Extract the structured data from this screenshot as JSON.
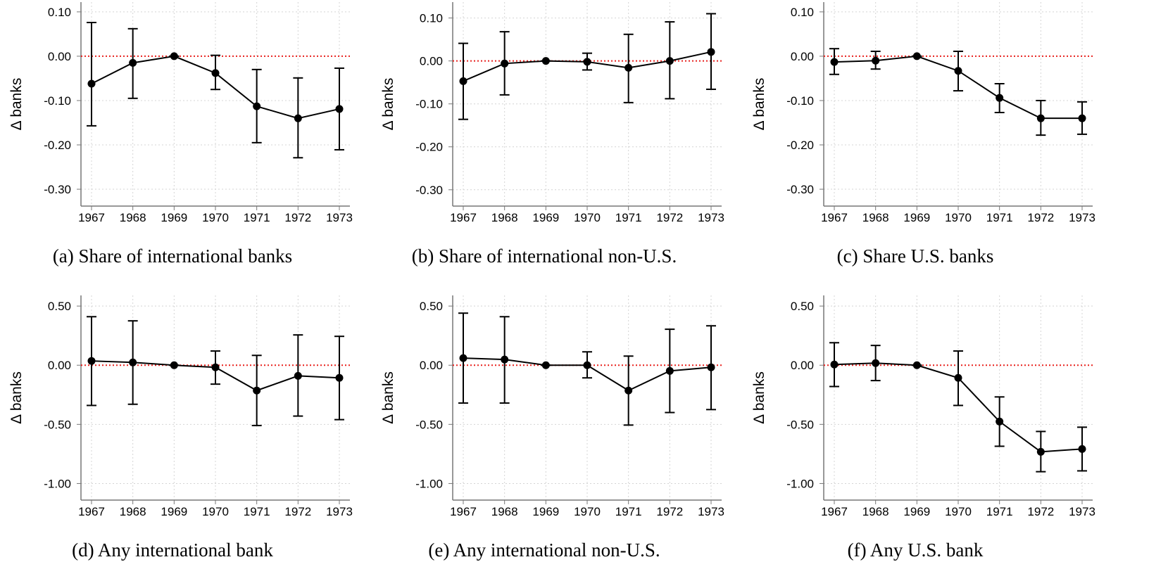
{
  "chart_data": [
    {
      "type": "line",
      "title": "(a) Share of international banks",
      "ylabel": "Δ banks",
      "categories": [
        "1967",
        "1968",
        "1969",
        "1970",
        "1971",
        "1972",
        "1973"
      ],
      "values": [
        -0.062,
        -0.015,
        0,
        -0.038,
        -0.113,
        -0.14,
        -0.119
      ],
      "lower": [
        -0.157,
        -0.095,
        0,
        -0.075,
        -0.195,
        -0.229,
        -0.211
      ],
      "upper": [
        0.076,
        0.062,
        0,
        0.002,
        -0.03,
        -0.049,
        -0.027
      ],
      "color": "#000000",
      "ylim": [
        -0.338,
        0.122
      ],
      "yticks": [
        {
          "value": -0.3,
          "label": "-0.30"
        },
        {
          "value": -0.2,
          "label": "-0.20"
        },
        {
          "value": -0.1,
          "label": "-0.10"
        },
        {
          "value": 0,
          "label": "0.00"
        },
        {
          "value": 0.1,
          "label": "0.10"
        }
      ],
      "grid": true,
      "hline": 0,
      "hline_color": "#e8211d"
    },
    {
      "type": "line",
      "title": "(b) Share of international non-U.S.",
      "ylabel": "Δ banks",
      "categories": [
        "1967",
        "1968",
        "1969",
        "1970",
        "1971",
        "1972",
        "1973"
      ],
      "values": [
        -0.047,
        -0.006,
        0,
        -0.002,
        -0.016,
        0,
        0.021
      ],
      "lower": [
        -0.136,
        -0.079,
        0,
        -0.021,
        -0.097,
        -0.088,
        -0.066
      ],
      "upper": [
        0.041,
        0.068,
        0,
        0.018,
        0.062,
        0.091,
        0.11
      ],
      "color": "#000000",
      "ylim": [
        -0.338,
        0.137
      ],
      "yticks": [
        {
          "value": -0.3,
          "label": "-0.30"
        },
        {
          "value": -0.2,
          "label": "-0.20"
        },
        {
          "value": -0.1,
          "label": "-0.10"
        },
        {
          "value": 0,
          "label": "0.00"
        },
        {
          "value": 0.1,
          "label": "0.10"
        }
      ],
      "grid": true,
      "hline": 0,
      "hline_color": "#e8211d"
    },
    {
      "type": "line",
      "title": "(c) Share U.S. banks",
      "ylabel": "Δ banks",
      "categories": [
        "1967",
        "1968",
        "1969",
        "1970",
        "1971",
        "1972",
        "1973"
      ],
      "values": [
        -0.013,
        -0.01,
        0,
        -0.033,
        -0.094,
        -0.14,
        -0.14
      ],
      "lower": [
        -0.041,
        -0.029,
        0,
        -0.078,
        -0.127,
        -0.178,
        -0.176
      ],
      "upper": [
        0.017,
        0.011,
        0,
        0.011,
        -0.062,
        -0.1,
        -0.103
      ],
      "color": "#000000",
      "ylim": [
        -0.338,
        0.122
      ],
      "yticks": [
        {
          "value": -0.3,
          "label": "-0.30"
        },
        {
          "value": -0.2,
          "label": "-0.20"
        },
        {
          "value": -0.1,
          "label": "-0.10"
        },
        {
          "value": 0,
          "label": "0.00"
        },
        {
          "value": 0.1,
          "label": "0.10"
        }
      ],
      "grid": true,
      "hline": 0,
      "hline_color": "#e8211d"
    },
    {
      "type": "line",
      "title": "(d) Any international bank",
      "ylabel": "Δ banks",
      "categories": [
        "1967",
        "1968",
        "1969",
        "1970",
        "1971",
        "1972",
        "1973"
      ],
      "values": [
        0.036,
        0.024,
        0,
        -0.018,
        -0.214,
        -0.09,
        -0.107
      ],
      "lower": [
        -0.34,
        -0.33,
        0,
        -0.16,
        -0.51,
        -0.43,
        -0.46
      ],
      "upper": [
        0.41,
        0.375,
        0,
        0.12,
        0.083,
        0.256,
        0.244
      ],
      "color": "#000000",
      "ylim": [
        -1.14,
        0.59
      ],
      "yticks": [
        {
          "value": -1,
          "label": "-1.00"
        },
        {
          "value": -0.5,
          "label": "-0.50"
        },
        {
          "value": 0,
          "label": "0.00"
        },
        {
          "value": 0.5,
          "label": "0.50"
        }
      ],
      "grid": true,
      "hline": 0,
      "hline_color": "#e8211d"
    },
    {
      "type": "line",
      "title": "(e) Any international non-U.S.",
      "ylabel": "Δ banks",
      "categories": [
        "1967",
        "1968",
        "1969",
        "1970",
        "1971",
        "1972",
        "1973"
      ],
      "values": [
        0.06,
        0.048,
        0,
        0,
        -0.214,
        -0.048,
        -0.018
      ],
      "lower": [
        -0.32,
        -0.32,
        0,
        -0.107,
        -0.506,
        -0.4,
        -0.375
      ],
      "upper": [
        0.44,
        0.41,
        0,
        0.113,
        0.077,
        0.304,
        0.333
      ],
      "color": "#000000",
      "ylim": [
        -1.14,
        0.59
      ],
      "yticks": [
        {
          "value": -1,
          "label": "-1.00"
        },
        {
          "value": -0.5,
          "label": "-0.50"
        },
        {
          "value": 0,
          "label": "0.00"
        },
        {
          "value": 0.5,
          "label": "0.50"
        }
      ],
      "grid": true,
      "hline": 0,
      "hline_color": "#e8211d"
    },
    {
      "type": "line",
      "title": "(f) Any U.S. bank",
      "ylabel": "Δ banks",
      "categories": [
        "1967",
        "1968",
        "1969",
        "1970",
        "1971",
        "1972",
        "1973"
      ],
      "values": [
        0.006,
        0.018,
        0,
        -0.107,
        -0.476,
        -0.732,
        -0.708
      ],
      "lower": [
        -0.18,
        -0.13,
        0,
        -0.34,
        -0.685,
        -0.9,
        -0.893
      ],
      "upper": [
        0.19,
        0.167,
        0,
        0.12,
        -0.268,
        -0.56,
        -0.524
      ],
      "color": "#000000",
      "ylim": [
        -1.14,
        0.59
      ],
      "yticks": [
        {
          "value": -1,
          "label": "-1.00"
        },
        {
          "value": -0.5,
          "label": "-0.50"
        },
        {
          "value": 0,
          "label": "0.00"
        },
        {
          "value": 0.5,
          "label": "0.50"
        }
      ],
      "grid": true,
      "hline": 0,
      "hline_color": "#e8211d"
    }
  ]
}
